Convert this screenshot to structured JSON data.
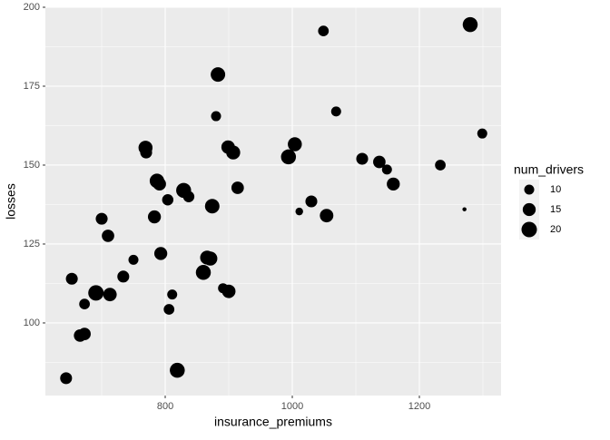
{
  "chart_data": {
    "type": "scatter",
    "x_label": "insurance_premiums",
    "y_label": "losses",
    "x": [
      644,
      653,
      666,
      673,
      673,
      691,
      700,
      710,
      713,
      734,
      750,
      769,
      770,
      783,
      787,
      791,
      793,
      804,
      811,
      806,
      819,
      829,
      837,
      860,
      866,
      871,
      874,
      880,
      883,
      891,
      899,
      900,
      907,
      914,
      994,
      1004,
      1011,
      1030,
      1049,
      1054,
      1069,
      1110,
      1137,
      1149,
      1159,
      1233,
      1271,
      1280,
      1299
    ],
    "values": [
      82.5,
      114,
      96,
      96.5,
      106,
      109.5,
      133,
      127.6,
      109,
      114.7,
      120,
      155.5,
      154,
      133.6,
      145,
      144,
      122,
      139,
      109,
      104.3,
      85,
      142,
      140,
      116,
      120.7,
      120.4,
      137,
      165.5,
      178.7,
      111,
      155.7,
      110,
      154,
      142.8,
      152.6,
      156.6,
      135.3,
      138.5,
      192.5,
      134,
      167,
      152,
      151,
      148.6,
      144,
      150,
      136,
      194.5,
      160
    ],
    "sizes": [
      13,
      13,
      14,
      14,
      11,
      20,
      13,
      14,
      16,
      13,
      10,
      17,
      13,
      15,
      18,
      15,
      15,
      12,
      10,
      11,
      19,
      19,
      12,
      19,
      17,
      17,
      18,
      10,
      18,
      10,
      16,
      16,
      17,
      14,
      19,
      17,
      7,
      13,
      11,
      16,
      10,
      13,
      14,
      10,
      15,
      11,
      4,
      19,
      10
    ],
    "color": "#000000",
    "xlim": [
      611.4,
      1328.6
    ],
    "ylim": [
      77,
      200
    ],
    "xticks": [
      800,
      1000,
      1200
    ],
    "yticks": [
      100,
      125,
      150,
      175,
      200
    ],
    "grid": true,
    "size_legend": {
      "title": "num_drivers",
      "values": [
        10,
        15,
        20
      ]
    }
  }
}
